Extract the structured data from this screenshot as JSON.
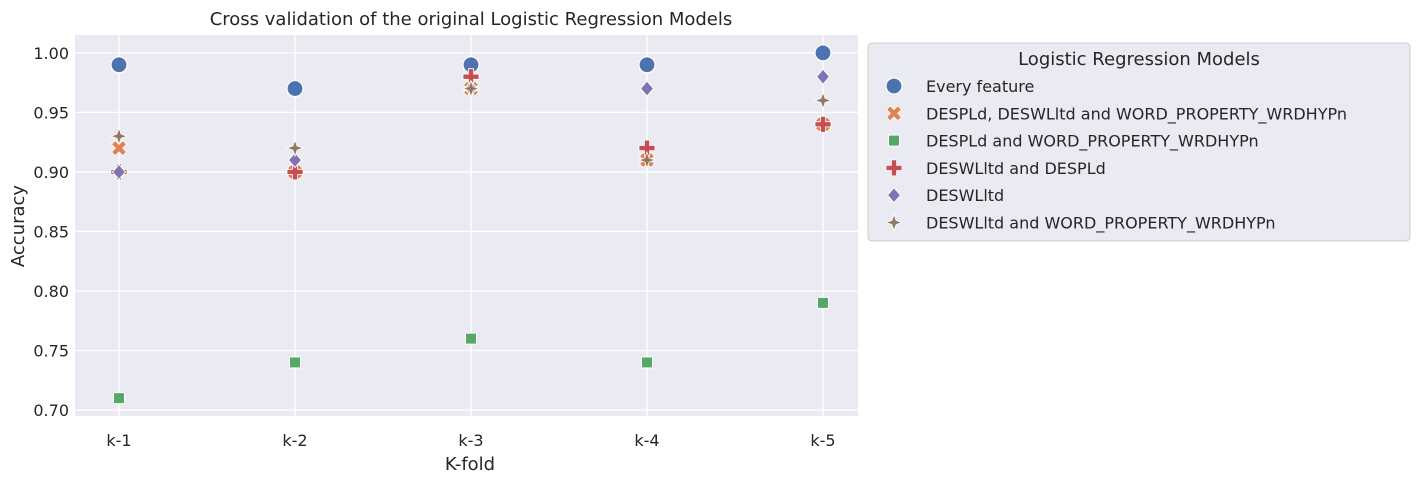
{
  "chart_data": {
    "type": "scatter",
    "title": "Cross validation of the original Logistic Regression Models",
    "xlabel": "K-fold",
    "ylabel": "Accuracy",
    "categories": [
      "k-1",
      "k-2",
      "k-3",
      "k-4",
      "k-5"
    ],
    "ylim": [
      0.695,
      1.015
    ],
    "yticks": [
      "0.70",
      "0.75",
      "0.80",
      "0.85",
      "0.90",
      "0.95",
      "1.00"
    ],
    "grid": true,
    "legend": {
      "title": "Logistic Regression Models",
      "placement": "outside-right"
    },
    "series": [
      {
        "name": "Every feature",
        "marker": "circle",
        "color": "#4c72b0",
        "values": [
          0.99,
          0.97,
          0.99,
          0.99,
          1.0
        ]
      },
      {
        "name": "DESPLd, DESWLltd and WORD_PROPERTY_WRDHYPn",
        "marker": "x",
        "color": "#dd8452",
        "values": [
          0.92,
          0.9,
          0.97,
          0.91,
          0.94
        ]
      },
      {
        "name": "DESPLd and WORD_PROPERTY_WRDHYPn",
        "marker": "square",
        "color": "#55a868",
        "values": [
          0.71,
          0.74,
          0.76,
          0.74,
          0.79
        ]
      },
      {
        "name": "DESWLltd and DESPLd",
        "marker": "plus",
        "color": "#c44e52",
        "values": [
          0.9,
          0.9,
          0.98,
          0.92,
          0.94
        ]
      },
      {
        "name": "DESWLltd",
        "marker": "diamond",
        "color": "#8172b3",
        "values": [
          0.9,
          0.91,
          0.97,
          0.97,
          0.98
        ]
      },
      {
        "name": "DESWLltd and WORD_PROPERTY_WRDHYPn",
        "marker": "star",
        "color": "#937860",
        "values": [
          0.93,
          0.92,
          0.97,
          0.91,
          0.96
        ]
      }
    ]
  }
}
